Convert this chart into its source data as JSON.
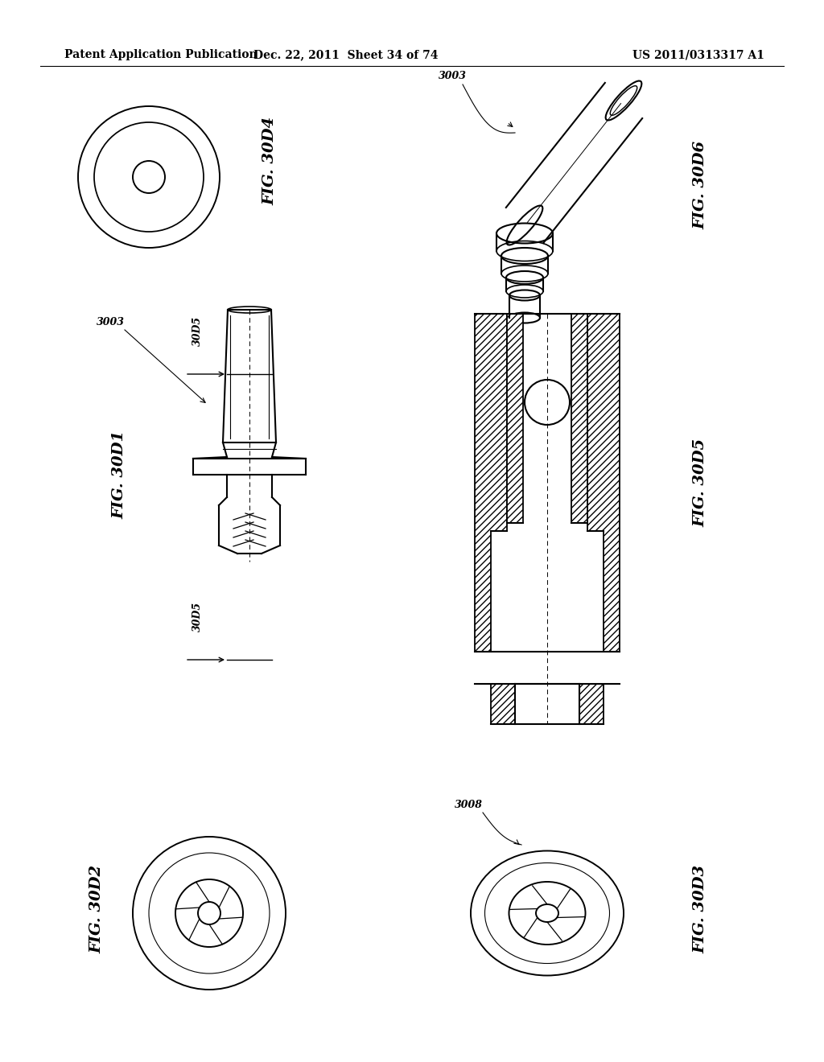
{
  "title_left": "Patent Application Publication",
  "title_center": "Dec. 22, 2011  Sheet 34 of 74",
  "title_right": "US 2011/0313317 A1",
  "bg": "#ffffff",
  "lw_main": 1.4,
  "lw_thin": 0.8,
  "lw_dash": 0.7,
  "fontsize_label": 14,
  "fontsize_small": 9,
  "fontsize_header": 10
}
